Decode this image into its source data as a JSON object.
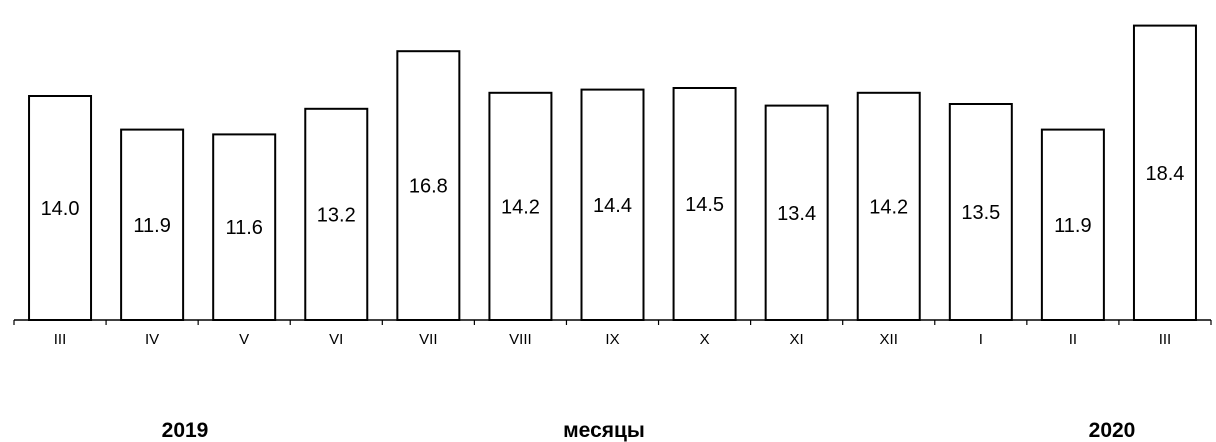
{
  "chart_data": {
    "type": "bar",
    "categories": [
      "III",
      "IV",
      "V",
      "VI",
      "VII",
      "VIII",
      "IX",
      "X",
      "XI",
      "XII",
      "I",
      "II",
      "III"
    ],
    "values": [
      14.0,
      11.9,
      11.6,
      13.2,
      16.8,
      14.2,
      14.4,
      14.5,
      13.4,
      14.2,
      13.5,
      11.9,
      18.4
    ],
    "data_labels": [
      "14.0",
      "11.9",
      "11.6",
      "13.2",
      "16.8",
      "14.2",
      "14.4",
      "14.5",
      "13.4",
      "14.2",
      "13.5",
      "11.9",
      "18.4"
    ],
    "title": "",
    "xlabel": "месяцы",
    "ylabel": "",
    "ylim": [
      0,
      20
    ],
    "grid": false,
    "bar_fill": "#ffffff",
    "bar_stroke": "#000000",
    "year_labels": {
      "start": "2019",
      "end": "2020"
    }
  }
}
